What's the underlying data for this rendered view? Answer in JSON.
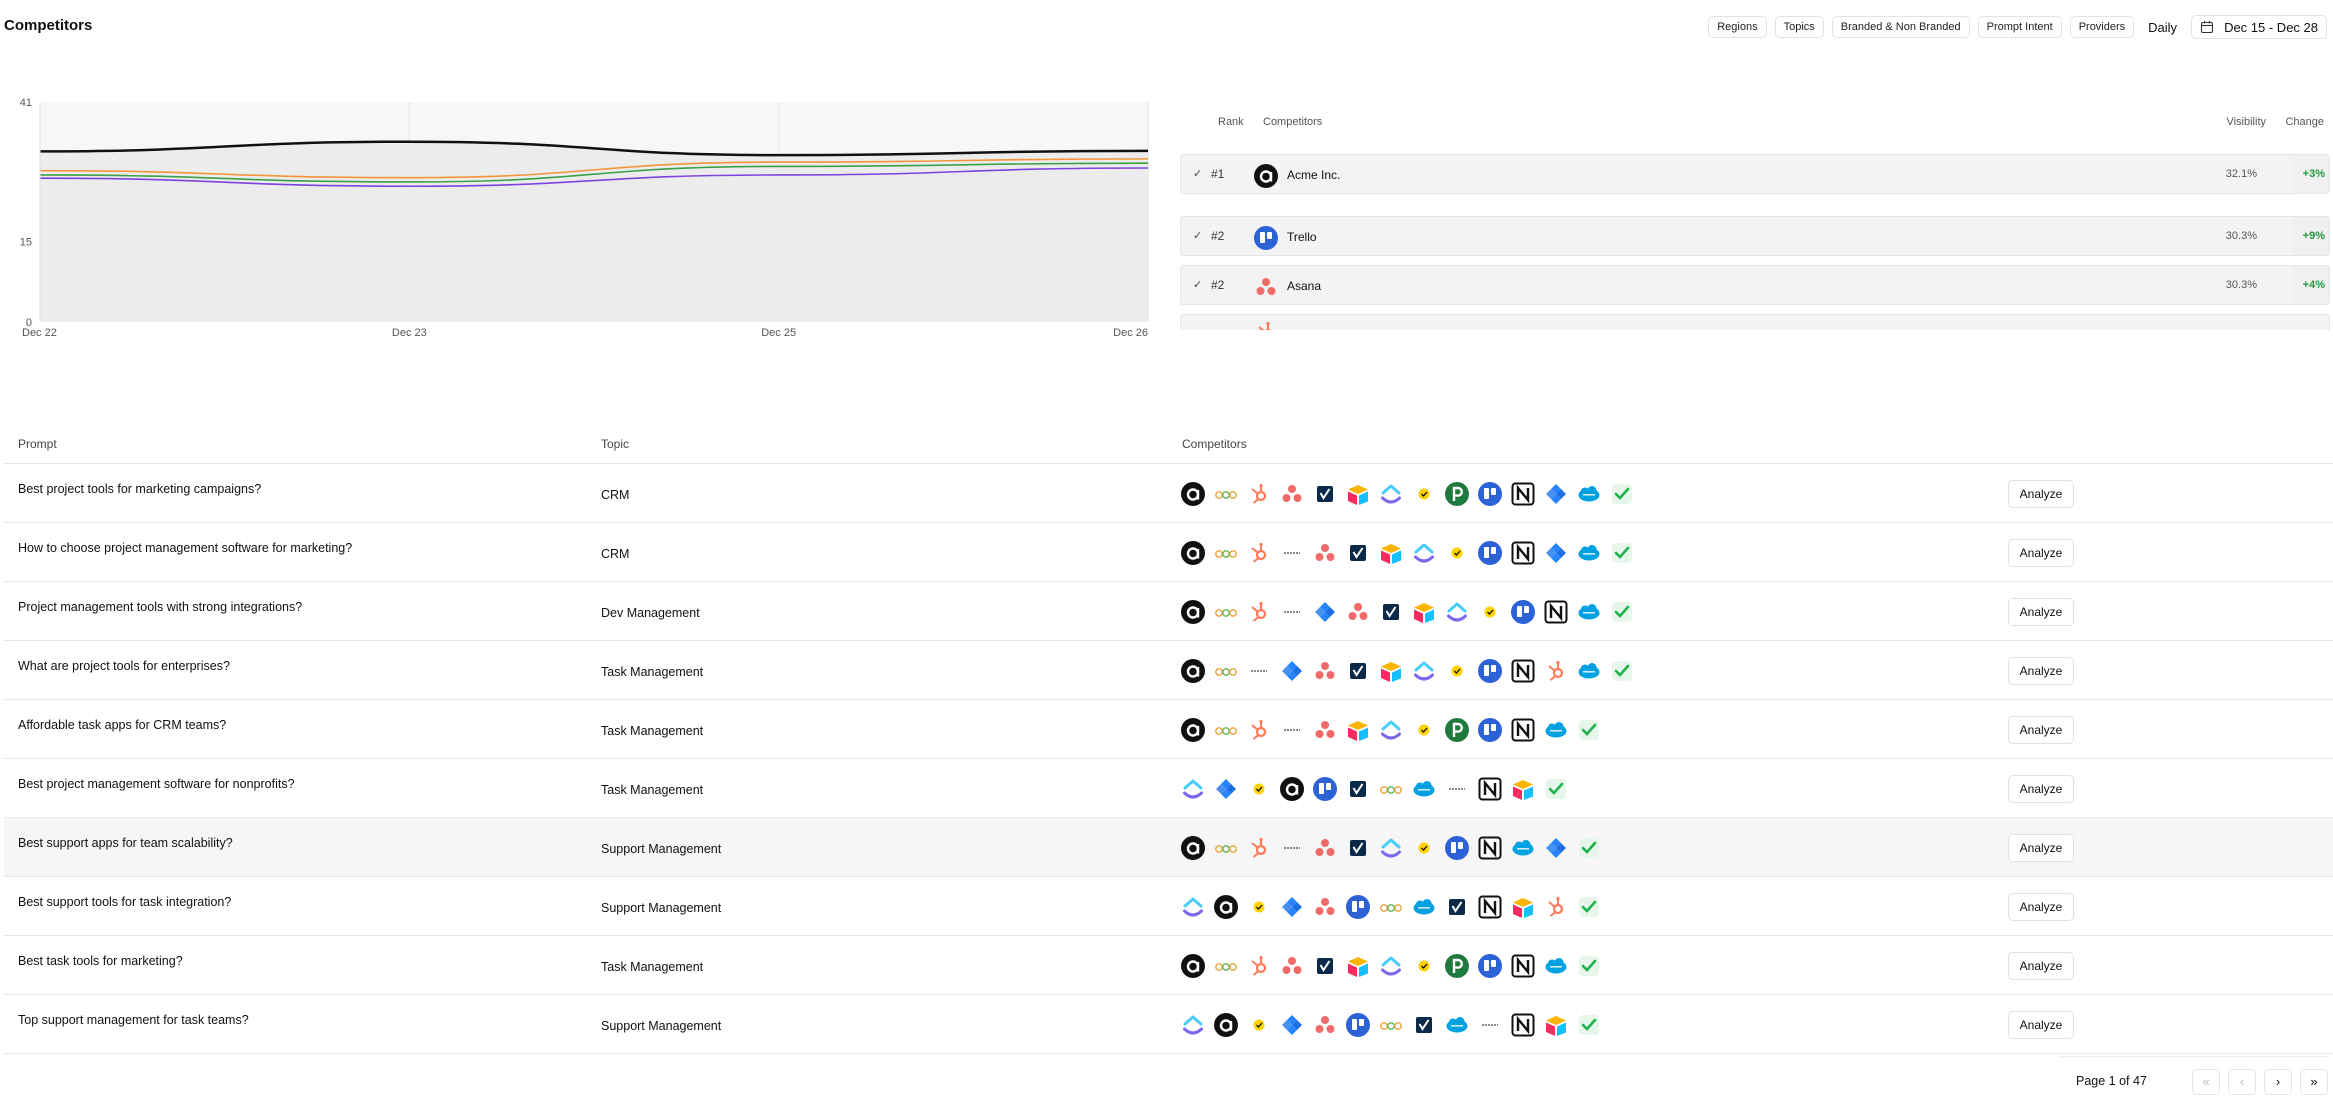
{
  "header": {
    "title": "Competitors",
    "filters": [
      "Regions",
      "Topics",
      "Branded & Non Branded",
      "Prompt Intent",
      "Providers"
    ],
    "granularity": "Daily",
    "date_range": "Dec 15 - Dec 28",
    "date_icon": "calendar-icon"
  },
  "chart_data": {
    "type": "line",
    "x": [
      "Dec 22",
      "Dec 23",
      "Dec 25",
      "Dec 26"
    ],
    "ylim": [
      0,
      41
    ],
    "yticks": [
      "41",
      "15",
      "0"
    ],
    "grid": "vertical",
    "series": [
      {
        "color": "#111111",
        "values": [
          31.8,
          33.6,
          31.1,
          31.9
        ]
      },
      {
        "color": "#f2953b",
        "values": [
          28.2,
          26.9,
          29.8,
          30.4
        ]
      },
      {
        "color": "#3aa14a",
        "values": [
          27.4,
          26.1,
          29.0,
          29.6
        ]
      },
      {
        "color": "#7b44e0",
        "values": [
          26.8,
          25.3,
          27.4,
          28.7
        ]
      }
    ]
  },
  "ranking": {
    "columns": {
      "rank": "Rank",
      "competitor": "Competitors",
      "visibility": "Visibility",
      "change": "Change"
    },
    "rows": [
      {
        "rank": "#1",
        "name": "Acme Inc.",
        "logo": "acme",
        "visibility": "32.1%",
        "change": "+3%"
      },
      {
        "rank": "#2",
        "name": "Trello",
        "logo": "trello",
        "visibility": "30.3%",
        "change": "+9%"
      },
      {
        "rank": "#2",
        "name": "Asana",
        "logo": "asana",
        "visibility": "30.3%",
        "change": "+4%"
      }
    ]
  },
  "table": {
    "columns": {
      "prompt": "Prompt",
      "topic": "Topic",
      "competitors": "Competitors"
    },
    "action_label": "Analyze",
    "rows": [
      {
        "prompt": "Best project tools for marketing campaigns?",
        "topic": "CRM",
        "logos": [
          "acme",
          "monday",
          "hubspot",
          "asana",
          "vwise",
          "airtable",
          "clickup",
          "norton",
          "pipedrive",
          "trello",
          "notion",
          "jira",
          "salesforce",
          "check"
        ]
      },
      {
        "prompt": "How to choose project management software for marketing?",
        "topic": "CRM",
        "logos": [
          "acme",
          "monday",
          "hubspot",
          "dash",
          "asana",
          "vwise",
          "airtable",
          "clickup",
          "norton",
          "trello",
          "notion",
          "jira",
          "salesforce",
          "check"
        ]
      },
      {
        "prompt": "Project management tools with strong integrations?",
        "topic": "Dev Management",
        "logos": [
          "acme",
          "monday",
          "hubspot",
          "dash",
          "jira",
          "asana",
          "vwise",
          "airtable",
          "clickup",
          "norton",
          "trello",
          "notion",
          "salesforce",
          "check"
        ]
      },
      {
        "prompt": "What are project tools for enterprises?",
        "topic": "Task Management",
        "logos": [
          "acme",
          "monday",
          "dash",
          "jira",
          "asana",
          "vwise",
          "airtable",
          "clickup",
          "norton",
          "trello",
          "notion",
          "hubspot",
          "salesforce",
          "check"
        ]
      },
      {
        "prompt": "Affordable task apps for CRM teams?",
        "topic": "Task Management",
        "logos": [
          "acme",
          "monday",
          "hubspot",
          "dash",
          "asana",
          "airtable",
          "clickup",
          "norton",
          "pipedrive",
          "trello",
          "notion",
          "salesforce",
          "check"
        ]
      },
      {
        "prompt": "Best project management software for nonprofits?",
        "topic": "Task Management",
        "logos": [
          "clickup",
          "jira",
          "norton",
          "acme",
          "trello",
          "vwise",
          "monday",
          "salesforce",
          "dash",
          "notion",
          "airtable",
          "check"
        ]
      },
      {
        "prompt": "Best support apps for team scalability?",
        "topic": "Support Management",
        "logos": [
          "acme",
          "monday",
          "hubspot",
          "dash",
          "asana",
          "vwise",
          "clickup",
          "norton",
          "trello",
          "notion",
          "salesforce",
          "jira",
          "check"
        ]
      },
      {
        "prompt": "Best support tools for task integration?",
        "topic": "Support Management",
        "logos": [
          "clickup",
          "acme",
          "norton",
          "jira",
          "asana",
          "trello",
          "monday",
          "salesforce",
          "vwise",
          "notion",
          "airtable",
          "hubspot",
          "check"
        ]
      },
      {
        "prompt": "Best task tools for marketing?",
        "topic": "Task Management",
        "logos": [
          "acme",
          "monday",
          "hubspot",
          "asana",
          "vwise",
          "airtable",
          "clickup",
          "norton",
          "pipedrive",
          "trello",
          "notion",
          "salesforce",
          "check"
        ]
      },
      {
        "prompt": "Top support management for task teams?",
        "topic": "Support Management",
        "logos": [
          "clickup",
          "acme",
          "norton",
          "jira",
          "asana",
          "trello",
          "monday",
          "vwise",
          "salesforce",
          "dash",
          "notion",
          "airtable",
          "check"
        ]
      }
    ]
  },
  "pagination": {
    "label": "Page 1 of 47",
    "first_icon": "double-chevron-left-icon",
    "prev_icon": "chevron-left-icon",
    "next_icon": "chevron-right-icon",
    "last_icon": "double-chevron-right-icon"
  }
}
